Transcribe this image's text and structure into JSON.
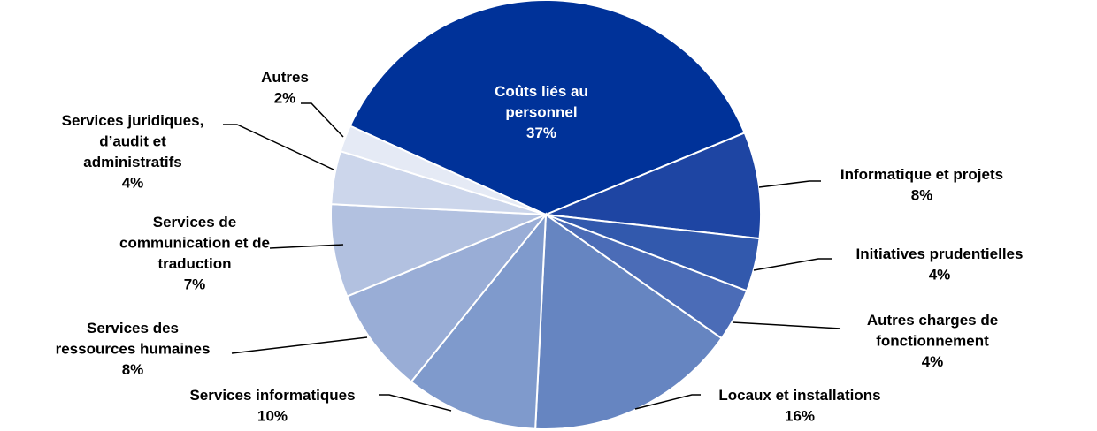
{
  "chart_data": {
    "type": "pie",
    "title": "",
    "start_angle_deg": -65.6,
    "direction": "clockwise",
    "slices": [
      {
        "label": [
          "Coûts liés au",
          "personnel"
        ],
        "value": 37,
        "value_label": "37%",
        "color": "#003299",
        "label_color": "#ffffff"
      },
      {
        "label": [
          "Informatique et projets"
        ],
        "value": 8,
        "value_label": "8%",
        "color": "#1e45a3",
        "label_color": "#000000"
      },
      {
        "label": [
          "Initiatives prudentielles"
        ],
        "value": 4,
        "value_label": "4%",
        "color": "#3259ad",
        "label_color": "#000000"
      },
      {
        "label": [
          "Autres charges de",
          "fonctionnement"
        ],
        "value": 4,
        "value_label": "4%",
        "color": "#4b6cb7",
        "label_color": "#000000"
      },
      {
        "label": [
          "Locaux et installations"
        ],
        "value": 16,
        "value_label": "16%",
        "color": "#6685c1",
        "label_color": "#000000"
      },
      {
        "label": [
          "Services informatiques"
        ],
        "value": 10,
        "value_label": "10%",
        "color": "#7f9acc",
        "label_color": "#000000"
      },
      {
        "label": [
          "Services des",
          "ressources humaines"
        ],
        "value": 8,
        "value_label": "8%",
        "color": "#99add6",
        "label_color": "#000000"
      },
      {
        "label": [
          "Services de",
          "communication et de",
          "traduction"
        ],
        "value": 7,
        "value_label": "7%",
        "color": "#b2c1e0",
        "label_color": "#000000"
      },
      {
        "label": [
          "Services juridiques,",
          "d’audit et",
          "administratifs"
        ],
        "value": 4,
        "value_label": "4%",
        "color": "#ccd6eb",
        "label_color": "#000000"
      },
      {
        "label": [
          "Autres"
        ],
        "value": 2,
        "value_label": "2%",
        "color": "#e5eaf5",
        "label_color": "#000000"
      }
    ]
  }
}
